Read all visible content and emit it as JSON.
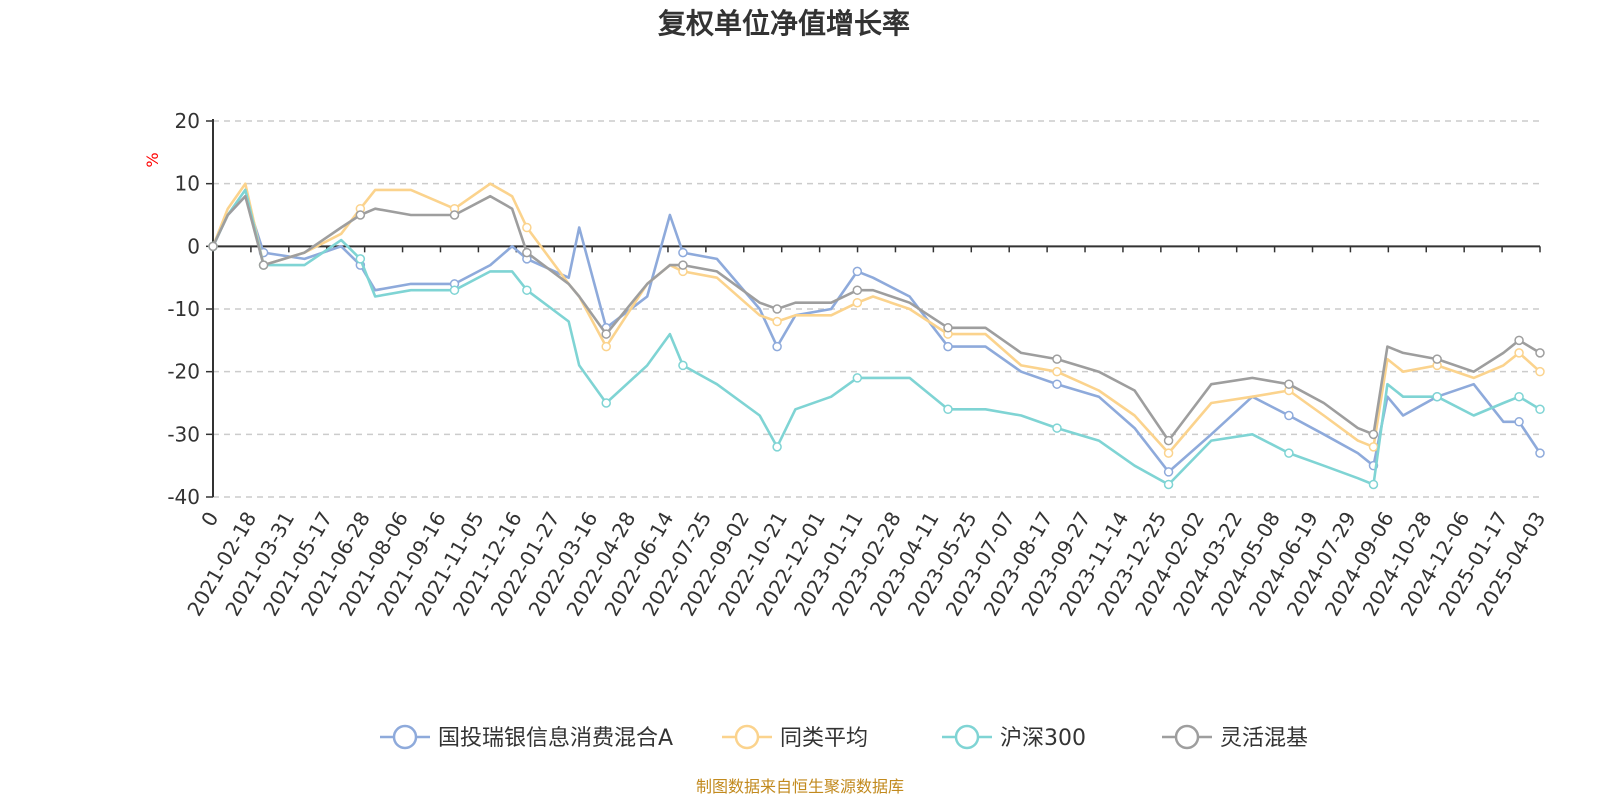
{
  "chart_data": {
    "type": "line",
    "title": "复权单位净值增长率",
    "unit_label": "%",
    "ylim": [
      -40,
      20
    ],
    "y_ticks": [
      "20",
      "10",
      "0",
      "-10",
      "-20",
      "-30",
      "-40"
    ],
    "y_tick_values": [
      20,
      10,
      0,
      -10,
      -20,
      -30,
      -40
    ],
    "x_origin_label": "0",
    "x_tick_labels": [
      "2021-02-18",
      "2021-03-31",
      "2021-05-17",
      "2021-06-28",
      "2021-08-06",
      "2021-09-16",
      "2021-11-05",
      "2021-12-16",
      "2022-01-27",
      "2022-03-16",
      "2022-04-28",
      "2022-06-14",
      "2022-07-25",
      "2022-09-02",
      "2022-10-21",
      "2022-12-01",
      "2023-01-11",
      "2023-02-28",
      "2023-04-11",
      "2023-05-25",
      "2023-07-07",
      "2023-08-17",
      "2023-09-27",
      "2023-11-14",
      "2023-12-25",
      "2024-02-02",
      "2024-03-22",
      "2024-05-08",
      "2024-06-19",
      "2024-07-29",
      "2024-09-06",
      "2024-10-28",
      "2024-12-06",
      "2025-01-17",
      "2025-04-03"
    ],
    "x_range": [
      "2021-02-01",
      "2025-04-03"
    ],
    "grid": "horizontal dashed",
    "legend_position": "bottom",
    "series": [
      {
        "name": "国投瑞银信息消费混合A",
        "color": "#8eaadb",
        "x": [
          "2021-02-01",
          "2021-02-18",
          "2021-03-10",
          "2021-03-31",
          "2021-05-17",
          "2021-06-28",
          "2021-07-20",
          "2021-08-06",
          "2021-09-16",
          "2021-11-05",
          "2021-12-16",
          "2022-01-10",
          "2022-01-27",
          "2022-03-16",
          "2022-03-28",
          "2022-04-28",
          "2022-06-14",
          "2022-07-10",
          "2022-07-25",
          "2022-09-02",
          "2022-10-21",
          "2022-11-10",
          "2022-12-01",
          "2023-01-11",
          "2023-02-10",
          "2023-02-28",
          "2023-04-11",
          "2023-05-25",
          "2023-07-07",
          "2023-08-17",
          "2023-09-27",
          "2023-11-14",
          "2023-12-25",
          "2024-02-02",
          "2024-03-22",
          "2024-05-08",
          "2024-06-19",
          "2024-07-29",
          "2024-09-06",
          "2024-09-24",
          "2024-10-10",
          "2024-10-28",
          "2024-12-06",
          "2025-01-17",
          "2025-02-20",
          "2025-03-10",
          "2025-04-03"
        ],
        "y": [
          0,
          5,
          8,
          -1,
          -2,
          0,
          -3,
          -7,
          -6,
          -6,
          -3,
          0,
          -2,
          -5,
          3,
          -13,
          -8,
          5,
          -1,
          -2,
          -10,
          -16,
          -11,
          -10,
          -4,
          -5,
          -8,
          -16,
          -16,
          -20,
          -22,
          -24,
          -29,
          -36,
          -30,
          -24,
          -27,
          -30,
          -33,
          -35,
          -24,
          -27,
          -24,
          -22,
          -28,
          -28,
          -33
        ]
      },
      {
        "name": "同类平均",
        "color": "#fbd38d",
        "x": [
          "2021-02-01",
          "2021-02-18",
          "2021-03-10",
          "2021-03-31",
          "2021-05-17",
          "2021-06-28",
          "2021-07-20",
          "2021-08-06",
          "2021-09-16",
          "2021-11-05",
          "2021-12-16",
          "2022-01-10",
          "2022-01-27",
          "2022-03-16",
          "2022-03-28",
          "2022-04-28",
          "2022-06-14",
          "2022-07-10",
          "2022-07-25",
          "2022-09-02",
          "2022-10-21",
          "2022-11-10",
          "2022-12-01",
          "2023-01-11",
          "2023-02-10",
          "2023-02-28",
          "2023-04-11",
          "2023-05-25",
          "2023-07-07",
          "2023-08-17",
          "2023-09-27",
          "2023-11-14",
          "2023-12-25",
          "2024-02-02",
          "2024-03-22",
          "2024-05-08",
          "2024-06-19",
          "2024-07-29",
          "2024-09-06",
          "2024-09-24",
          "2024-10-10",
          "2024-10-28",
          "2024-12-06",
          "2025-01-17",
          "2025-02-20",
          "2025-03-10",
          "2025-04-03"
        ],
        "y": [
          0,
          6,
          10,
          -3,
          -1,
          2,
          6,
          9,
          9,
          6,
          10,
          8,
          3,
          -6,
          -8,
          -16,
          -6,
          -3,
          -4,
          -5,
          -11,
          -12,
          -11,
          -11,
          -9,
          -8,
          -10,
          -14,
          -14,
          -19,
          -20,
          -23,
          -27,
          -33,
          -25,
          -24,
          -23,
          -27,
          -31,
          -32,
          -18,
          -20,
          -19,
          -21,
          -19,
          -17,
          -20
        ]
      },
      {
        "name": "沪深300",
        "color": "#7fd4d4",
        "x": [
          "2021-02-01",
          "2021-02-18",
          "2021-03-10",
          "2021-03-31",
          "2021-05-17",
          "2021-06-28",
          "2021-07-20",
          "2021-08-06",
          "2021-09-16",
          "2021-11-05",
          "2021-12-16",
          "2022-01-10",
          "2022-01-27",
          "2022-03-16",
          "2022-03-28",
          "2022-04-28",
          "2022-06-14",
          "2022-07-10",
          "2022-07-25",
          "2022-09-02",
          "2022-10-21",
          "2022-11-10",
          "2022-12-01",
          "2023-01-11",
          "2023-02-10",
          "2023-02-28",
          "2023-04-11",
          "2023-05-25",
          "2023-07-07",
          "2023-08-17",
          "2023-09-27",
          "2023-11-14",
          "2023-12-25",
          "2024-02-02",
          "2024-03-22",
          "2024-05-08",
          "2024-06-19",
          "2024-07-29",
          "2024-09-06",
          "2024-09-24",
          "2024-10-10",
          "2024-10-28",
          "2024-12-06",
          "2025-01-17",
          "2025-02-20",
          "2025-03-10",
          "2025-04-03"
        ],
        "y": [
          0,
          5,
          9,
          -3,
          -3,
          1,
          -2,
          -8,
          -7,
          -7,
          -4,
          -4,
          -7,
          -12,
          -19,
          -25,
          -19,
          -14,
          -19,
          -22,
          -27,
          -32,
          -26,
          -24,
          -21,
          -21,
          -21,
          -26,
          -26,
          -27,
          -29,
          -31,
          -35,
          -38,
          -31,
          -30,
          -33,
          -35,
          -37,
          -38,
          -22,
          -24,
          -24,
          -27,
          -25,
          -24,
          -26
        ]
      },
      {
        "name": "灵活混基",
        "color": "#9e9e9e",
        "x": [
          "2021-02-01",
          "2021-02-18",
          "2021-03-10",
          "2021-03-31",
          "2021-05-17",
          "2021-06-28",
          "2021-07-20",
          "2021-08-06",
          "2021-09-16",
          "2021-11-05",
          "2021-12-16",
          "2022-01-10",
          "2022-01-27",
          "2022-03-16",
          "2022-03-28",
          "2022-04-28",
          "2022-06-14",
          "2022-07-10",
          "2022-07-25",
          "2022-09-02",
          "2022-10-21",
          "2022-11-10",
          "2022-12-01",
          "2023-01-11",
          "2023-02-10",
          "2023-02-28",
          "2023-04-11",
          "2023-05-25",
          "2023-07-07",
          "2023-08-17",
          "2023-09-27",
          "2023-11-14",
          "2023-12-25",
          "2024-02-02",
          "2024-03-22",
          "2024-05-08",
          "2024-06-19",
          "2024-07-29",
          "2024-09-06",
          "2024-09-24",
          "2024-10-10",
          "2024-10-28",
          "2024-12-06",
          "2025-01-17",
          "2025-02-20",
          "2025-03-10",
          "2025-04-03"
        ],
        "y": [
          0,
          5,
          8,
          -3,
          -1,
          3,
          5,
          6,
          5,
          5,
          8,
          6,
          -1,
          -6,
          -8,
          -14,
          -6,
          -3,
          -3,
          -4,
          -9,
          -10,
          -9,
          -9,
          -7,
          -7,
          -9,
          -13,
          -13,
          -17,
          -18,
          -20,
          -23,
          -31,
          -22,
          -21,
          -22,
          -25,
          -29,
          -30,
          -16,
          -17,
          -18,
          -20,
          -17,
          -15,
          -17
        ]
      }
    ]
  },
  "source_text": "制图数据来自恒生聚源数据库"
}
